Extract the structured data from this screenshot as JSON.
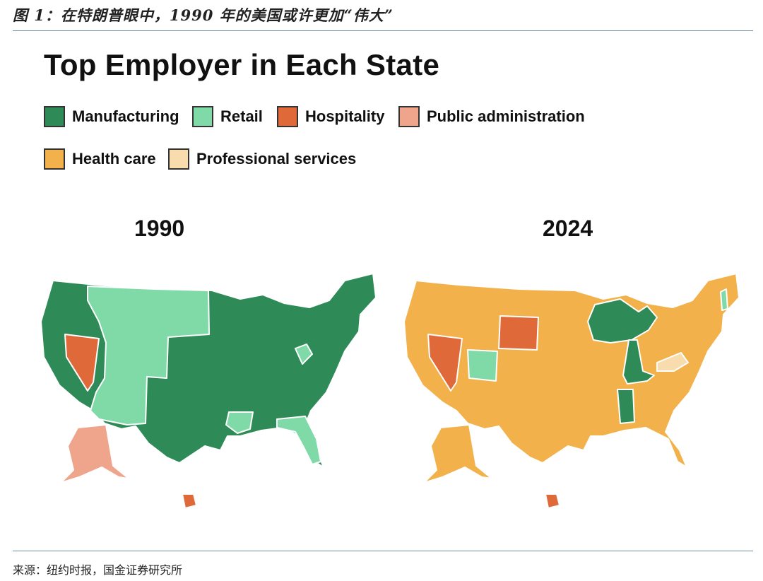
{
  "caption": "图 1：在特朗普眼中，1990 年的美国或许更加“伟大”",
  "source": "来源：纽约时报，国金证券研究所",
  "title": "Top Employer in Each State",
  "legend": [
    {
      "label": "Manufacturing",
      "color": "#2e8b57"
    },
    {
      "label": "Retail",
      "color": "#7fdaa8"
    },
    {
      "label": "Hospitality",
      "color": "#e0693a"
    },
    {
      "label": "Public administration",
      "color": "#efa48c"
    },
    {
      "label": "Health care",
      "color": "#f2b14a"
    },
    {
      "label": "Professional services",
      "color": "#f8dcae"
    }
  ],
  "maps": [
    {
      "year": "1990",
      "base_category": "Manufacturing",
      "notable": {
        "Retail": [
          "Washington-east strip",
          "Montana",
          "Idaho",
          "Wyoming",
          "North Dakota",
          "South Dakota",
          "Colorado",
          "Arizona",
          "New Mexico",
          "Louisiana",
          "Florida",
          "West Virginia"
        ],
        "Hospitality": [
          "Nevada",
          "Hawaii"
        ],
        "Public administration": [
          "Alaska"
        ]
      }
    },
    {
      "year": "2024",
      "base_category": "Health care",
      "notable": {
        "Manufacturing": [
          "Wisconsin",
          "Michigan",
          "Iowa",
          "Indiana",
          "Kentucky",
          "Alabama"
        ],
        "Hospitality": [
          "Nevada",
          "Wyoming",
          "Hawaii"
        ],
        "Retail": [
          "Utah",
          "New Hampshire"
        ],
        "Professional services": [
          "Virginia"
        ]
      }
    }
  ]
}
